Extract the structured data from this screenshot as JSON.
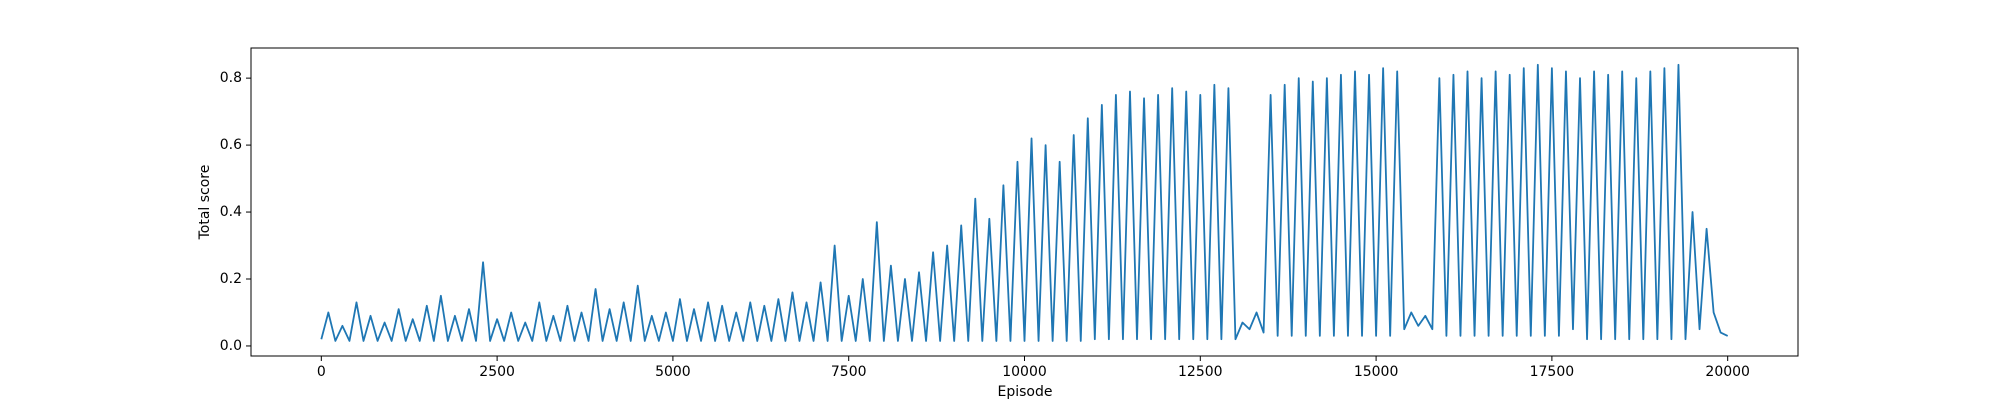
{
  "chart_data": {
    "type": "line",
    "xlabel": "Episode",
    "ylabel": "Total score",
    "xlim": [
      -1000,
      21000
    ],
    "ylim": [
      -0.03,
      0.89
    ],
    "xticks": [
      0,
      2500,
      5000,
      7500,
      10000,
      12500,
      15000,
      17500,
      20000
    ],
    "yticks": [
      {
        "value": 0,
        "label": "0.0"
      },
      0.2,
      0.4,
      0.6,
      0.8
    ],
    "series": [
      {
        "color": "#1f77b4",
        "x": [
          0,
          100,
          200,
          300,
          400,
          500,
          600,
          700,
          800,
          900,
          1000,
          1100,
          1200,
          1300,
          1400,
          1500,
          1600,
          1700,
          1800,
          1900,
          2000,
          2100,
          2200,
          2300,
          2400,
          2500,
          2600,
          2700,
          2800,
          2900,
          3000,
          3100,
          3200,
          3300,
          3400,
          3500,
          3600,
          3700,
          3800,
          3900,
          4000,
          4100,
          4200,
          4300,
          4400,
          4500,
          4600,
          4700,
          4800,
          4900,
          5000,
          5100,
          5200,
          5300,
          5400,
          5500,
          5600,
          5700,
          5800,
          5900,
          6000,
          6100,
          6200,
          6300,
          6400,
          6500,
          6600,
          6700,
          6800,
          6900,
          7000,
          7100,
          7200,
          7300,
          7400,
          7500,
          7600,
          7700,
          7800,
          7900,
          8000,
          8100,
          8200,
          8300,
          8400,
          8500,
          8600,
          8700,
          8800,
          8900,
          9000,
          9100,
          9200,
          9300,
          9400,
          9500,
          9600,
          9700,
          9800,
          9900,
          10000,
          10100,
          10200,
          10300,
          10400,
          10500,
          10600,
          10700,
          10800,
          10900,
          11000,
          11100,
          11200,
          11300,
          11400,
          11500,
          11600,
          11700,
          11800,
          11900,
          12000,
          12100,
          12200,
          12300,
          12400,
          12500,
          12600,
          12700,
          12800,
          12900,
          13000,
          13100,
          13200,
          13300,
          13400,
          13500,
          13600,
          13700,
          13800,
          13900,
          14000,
          14100,
          14200,
          14300,
          14400,
          14500,
          14600,
          14700,
          14800,
          14900,
          15000,
          15100,
          15200,
          15300,
          15400,
          15500,
          15600,
          15700,
          15800,
          15900,
          16000,
          16100,
          16200,
          16300,
          16400,
          16500,
          16600,
          16700,
          16800,
          16900,
          17000,
          17100,
          17200,
          17300,
          17400,
          17500,
          17600,
          17700,
          17800,
          17900,
          18000,
          18100,
          18200,
          18300,
          18400,
          18500,
          18600,
          18700,
          18800,
          18900,
          19000,
          19100,
          19200,
          19300,
          19400,
          19500,
          19600,
          19700,
          19800,
          19900,
          20000
        ],
        "values": [
          0.02,
          0.1,
          0.015,
          0.06,
          0.015,
          0.13,
          0.015,
          0.09,
          0.015,
          0.07,
          0.015,
          0.11,
          0.015,
          0.08,
          0.015,
          0.12,
          0.015,
          0.15,
          0.015,
          0.09,
          0.015,
          0.11,
          0.015,
          0.25,
          0.015,
          0.08,
          0.015,
          0.1,
          0.015,
          0.07,
          0.015,
          0.13,
          0.015,
          0.09,
          0.015,
          0.12,
          0.015,
          0.1,
          0.015,
          0.17,
          0.015,
          0.11,
          0.015,
          0.13,
          0.015,
          0.18,
          0.015,
          0.09,
          0.015,
          0.1,
          0.015,
          0.14,
          0.015,
          0.11,
          0.015,
          0.13,
          0.015,
          0.12,
          0.015,
          0.1,
          0.015,
          0.13,
          0.015,
          0.12,
          0.015,
          0.14,
          0.015,
          0.16,
          0.015,
          0.13,
          0.015,
          0.19,
          0.015,
          0.3,
          0.015,
          0.15,
          0.015,
          0.2,
          0.015,
          0.37,
          0.015,
          0.24,
          0.015,
          0.2,
          0.015,
          0.22,
          0.015,
          0.28,
          0.015,
          0.3,
          0.015,
          0.36,
          0.015,
          0.44,
          0.015,
          0.38,
          0.015,
          0.48,
          0.015,
          0.55,
          0.015,
          0.62,
          0.015,
          0.6,
          0.015,
          0.55,
          0.015,
          0.63,
          0.015,
          0.68,
          0.02,
          0.72,
          0.02,
          0.75,
          0.02,
          0.76,
          0.02,
          0.74,
          0.02,
          0.75,
          0.02,
          0.77,
          0.02,
          0.76,
          0.02,
          0.75,
          0.02,
          0.78,
          0.02,
          0.77,
          0.02,
          0.07,
          0.05,
          0.1,
          0.04,
          0.75,
          0.03,
          0.78,
          0.03,
          0.8,
          0.03,
          0.79,
          0.03,
          0.8,
          0.03,
          0.81,
          0.03,
          0.82,
          0.03,
          0.81,
          0.03,
          0.83,
          0.03,
          0.82,
          0.05,
          0.1,
          0.06,
          0.09,
          0.05,
          0.8,
          0.03,
          0.81,
          0.03,
          0.82,
          0.03,
          0.8,
          0.03,
          0.82,
          0.03,
          0.81,
          0.03,
          0.83,
          0.03,
          0.84,
          0.03,
          0.83,
          0.03,
          0.82,
          0.05,
          0.8,
          0.02,
          0.82,
          0.02,
          0.81,
          0.02,
          0.82,
          0.02,
          0.8,
          0.02,
          0.82,
          0.02,
          0.83,
          0.02,
          0.84,
          0.02,
          0.4,
          0.05,
          0.35,
          0.1,
          0.04,
          0.03
        ]
      }
    ]
  }
}
